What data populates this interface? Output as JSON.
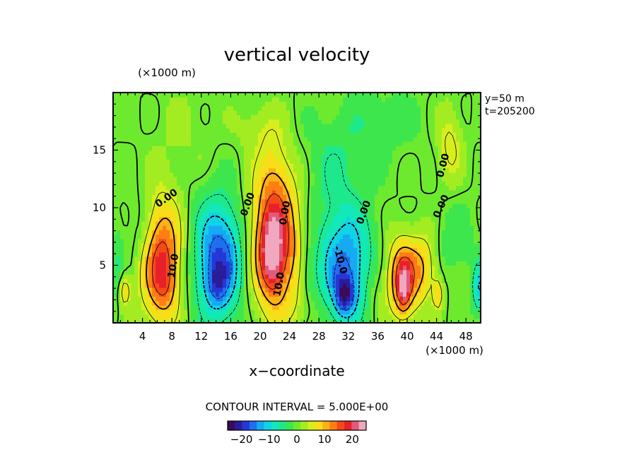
{
  "chart_data": {
    "type": "heatmap",
    "title": "vertical velocity",
    "xlabel": "x−coordinate",
    "x_unit": "(×1000 m)",
    "y_unit": "(×1000 m)",
    "xlim": [
      0,
      50
    ],
    "ylim": [
      0,
      20
    ],
    "x_ticks": [
      "4",
      "8",
      "12",
      "16",
      "20",
      "24",
      "28",
      "32",
      "36",
      "40",
      "44",
      "48"
    ],
    "y_ticks": [
      "5",
      "10",
      "15"
    ],
    "info": [
      "y=50  m",
      "t=205200"
    ],
    "contour_interval_label": "CONTOUR INTERVAL = 5.000E+00",
    "contour_labels": [
      {
        "text": "0.00",
        "x": 7.5,
        "y": 10.6,
        "angle": -35
      },
      {
        "text": "10.0",
        "x": 8.6,
        "y": 4.9,
        "angle": -80
      },
      {
        "text": "0.00",
        "x": 18.7,
        "y": 10.2,
        "angle": -70
      },
      {
        "text": "0.00",
        "x": 23.8,
        "y": 9.5,
        "angle": -80
      },
      {
        "text": "10.0",
        "x": 23.0,
        "y": 3.3,
        "angle": -80
      },
      {
        "text": "-10.0",
        "x": 30.5,
        "y": 5.4,
        "angle": 75
      },
      {
        "text": "0.00",
        "x": 34.5,
        "y": 9.5,
        "angle": -70
      },
      {
        "text": "0.00",
        "x": 45.3,
        "y": 13.6,
        "angle": -75
      },
      {
        "text": "0.00",
        "x": 45.0,
        "y": 10.0,
        "angle": -65
      }
    ],
    "colorbar": {
      "range": [
        -25,
        25
      ],
      "ticks": [
        "−20",
        "−10",
        "0",
        "10",
        "20"
      ],
      "tick_values": [
        -20,
        -10,
        0,
        10,
        20
      ],
      "colors": [
        "#3a0a5c",
        "#2a1d9a",
        "#2438d8",
        "#1f6ff0",
        "#16a9f4",
        "#10d3e6",
        "#12e8b8",
        "#1ee88c",
        "#3ee64e",
        "#6eea2e",
        "#a4ec22",
        "#d8ee1c",
        "#f8de18",
        "#fcb216",
        "#fc7e14",
        "#f44a18",
        "#e8202a",
        "#e05a7a",
        "#f0a8c0"
      ]
    },
    "features": [
      {
        "x": 1.5,
        "y": 2.8,
        "sx": 0.6,
        "sy": 1.0,
        "w": 8
      },
      {
        "x": 0.6,
        "y": 4.5,
        "sx": 0.5,
        "sy": 2.5,
        "w": -4
      },
      {
        "x": 6.5,
        "y": 5.5,
        "sx": 2.0,
        "sy": 3.8,
        "w": 17
      },
      {
        "x": 7.0,
        "y": 3.5,
        "sx": 1.1,
        "sy": 1.6,
        "w": 4
      },
      {
        "x": 3.8,
        "y": 8.0,
        "sx": 1.6,
        "sy": 2.5,
        "w": -4
      },
      {
        "x": 14.5,
        "y": 5.5,
        "sx": 2.4,
        "sy": 3.6,
        "w": -18
      },
      {
        "x": 14.2,
        "y": 3.4,
        "sx": 1.0,
        "sy": 1.3,
        "w": -6
      },
      {
        "x": 22.0,
        "y": 7.0,
        "sx": 2.5,
        "sy": 4.2,
        "w": 19
      },
      {
        "x": 21.6,
        "y": 6.0,
        "sx": 1.0,
        "sy": 2.2,
        "w": 10
      },
      {
        "x": 22.0,
        "y": 13.0,
        "sx": 1.5,
        "sy": 2.5,
        "w": 4
      },
      {
        "x": 26.5,
        "y": 4.5,
        "sx": 0.8,
        "sy": 2.0,
        "w": -3
      },
      {
        "x": 31.5,
        "y": 5.0,
        "sx": 2.7,
        "sy": 3.5,
        "w": -15
      },
      {
        "x": 31.5,
        "y": 2.4,
        "sx": 0.9,
        "sy": 1.2,
        "w": -13
      },
      {
        "x": 30.0,
        "y": 13.5,
        "sx": 3.0,
        "sy": 3.0,
        "w": -4
      },
      {
        "x": 36.5,
        "y": 17.5,
        "sx": 4.0,
        "sy": 2.0,
        "w": -3
      },
      {
        "x": 39.5,
        "y": 4.0,
        "sx": 1.6,
        "sy": 2.4,
        "w": 17
      },
      {
        "x": 39.5,
        "y": 3.0,
        "sx": 0.6,
        "sy": 1.3,
        "w": 10
      },
      {
        "x": 42.5,
        "y": 5.0,
        "sx": 1.2,
        "sy": 2.0,
        "w": 7
      },
      {
        "x": 44.2,
        "y": 2.5,
        "sx": 0.5,
        "sy": 1.0,
        "w": 8
      },
      {
        "x": 46.5,
        "y": 7.0,
        "sx": 2.0,
        "sy": 2.4,
        "w": -3
      },
      {
        "x": 49.8,
        "y": 3.0,
        "sx": 0.7,
        "sy": 1.6,
        "w": -10
      },
      {
        "x": 45.8,
        "y": 15.5,
        "sx": 1.2,
        "sy": 2.4,
        "w": 6
      },
      {
        "x": 20.0,
        "y": 17.0,
        "sx": 2.0,
        "sy": 1.5,
        "w": 3
      },
      {
        "x": 10.0,
        "y": 17.0,
        "sx": 3.0,
        "sy": 3.0,
        "w": 1.5
      },
      {
        "x": 26.0,
        "y": 1.2,
        "sx": 2.0,
        "sy": 1.2,
        "w": 2
      },
      {
        "x": 35.5,
        "y": 3.0,
        "sx": 1.0,
        "sy": 2.0,
        "w": 3
      }
    ]
  }
}
